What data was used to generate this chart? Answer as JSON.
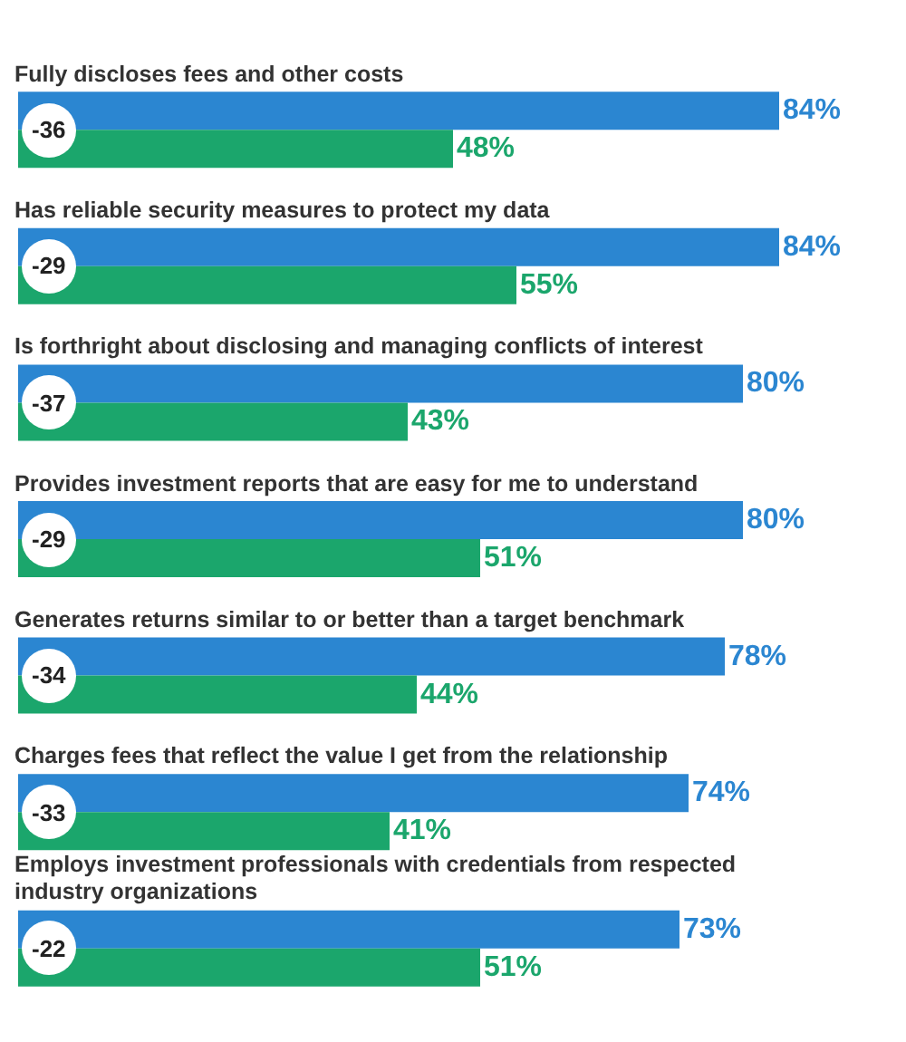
{
  "chart_data": {
    "type": "bar",
    "orientation": "horizontal",
    "categories": [
      "Fully discloses fees and other costs",
      "Has reliable security measures to protect my data",
      "Is forthright about disclosing and managing conflicts of interest",
      "Provides investment reports that are easy for me to understand",
      "Generates returns similar to or better than a target benchmark",
      "Charges fees that reflect the value I get from the relationship",
      "Employs investment professionals with credentials from respected industry organizations"
    ],
    "series": [
      {
        "color": "#2b86d1",
        "values": [
          84,
          84,
          80,
          80,
          78,
          74,
          73
        ],
        "value_labels": [
          "84%",
          "84%",
          "80%",
          "80%",
          "78%",
          "74%",
          "73%"
        ]
      },
      {
        "color": "#1ba66c",
        "values": [
          48,
          55,
          43,
          51,
          44,
          41,
          51
        ],
        "value_labels": [
          "48%",
          "55%",
          "43%",
          "51%",
          "44%",
          "41%",
          "51%"
        ]
      }
    ],
    "annotations": [
      "-36",
      "-29",
      "-37",
      "-29",
      "-34",
      "-33",
      "-22"
    ]
  }
}
